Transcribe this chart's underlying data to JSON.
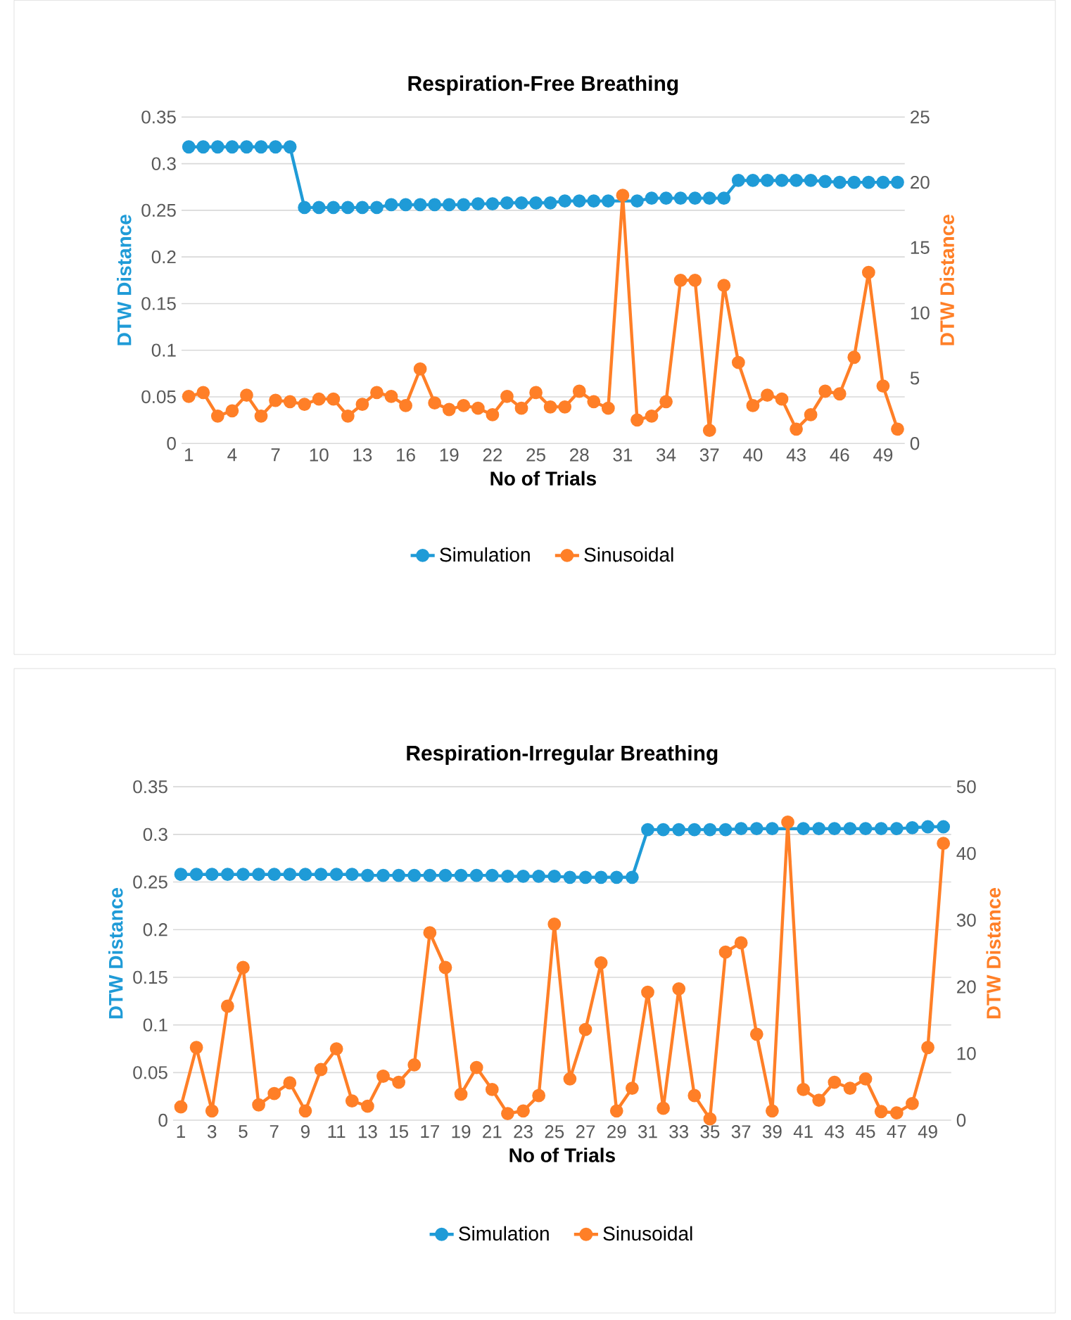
{
  "chart_data": [
    {
      "type": "line",
      "title": "Respiration-Free Breathing",
      "xlabel": "No of Trials",
      "ylabel": "DTW Distance",
      "y2label": "DTW Distance",
      "categories": [
        "1",
        null,
        null,
        "4",
        null,
        null,
        "7",
        null,
        null,
        "10",
        null,
        null,
        "13",
        null,
        null,
        "16",
        null,
        null,
        "19",
        null,
        null,
        "22",
        null,
        null,
        "25",
        null,
        null,
        "28",
        null,
        null,
        "31",
        null,
        null,
        "34",
        null,
        null,
        "37",
        null,
        null,
        "40",
        null,
        null,
        "43",
        null,
        null,
        "46",
        null,
        null,
        "49",
        null
      ],
      "series": [
        {
          "name": "Simulation",
          "color": "#1f9bd7",
          "values": [
            0.318,
            0.318,
            0.318,
            0.318,
            0.318,
            0.318,
            0.318,
            0.318,
            0.253,
            0.253,
            0.253,
            0.253,
            0.253,
            0.253,
            0.256,
            0.256,
            0.256,
            0.256,
            0.256,
            0.256,
            0.257,
            0.257,
            0.258,
            0.258,
            0.258,
            0.258,
            0.26,
            0.26,
            0.26,
            0.26,
            null,
            0.26,
            0.263,
            0.263,
            0.263,
            0.263,
            0.263,
            0.263,
            0.282,
            0.282,
            0.282,
            0.282,
            0.282,
            0.282,
            0.281,
            0.28,
            0.28,
            0.28,
            0.28,
            0.28
          ]
        },
        {
          "name": "Sinusoidal",
          "color": "#ff7f27",
          "axis": "y2",
          "values": [
            3.6,
            3.9,
            2.1,
            2.5,
            3.7,
            2.1,
            3.3,
            3.2,
            3.0,
            3.4,
            3.4,
            2.1,
            3.0,
            3.9,
            3.6,
            2.9,
            5.7,
            3.1,
            2.6,
            2.9,
            2.7,
            2.2,
            3.6,
            2.7,
            3.9,
            2.8,
            2.8,
            4.0,
            3.2,
            2.7,
            19.0,
            1.8,
            2.1,
            3.2,
            12.5,
            12.5,
            1.0,
            12.1,
            6.2,
            2.9,
            3.7,
            3.4,
            1.1,
            2.2,
            4.0,
            3.8,
            6.6,
            13.1,
            4.4,
            1.1
          ]
        }
      ],
      "ylim": [
        0,
        0.35
      ],
      "yticks": [
        0,
        0.05,
        0.1,
        0.15,
        0.2,
        0.25,
        0.3,
        0.35
      ],
      "y2lim": [
        0,
        25
      ],
      "y2ticks": [
        0,
        5,
        10,
        15,
        20,
        25
      ],
      "grid": "y",
      "legend": "bottom",
      "marker": "circle",
      "line_style": "solid"
    },
    {
      "type": "line",
      "title": "Respiration-Irregular Breathing",
      "xlabel": "No of Trials",
      "ylabel": "DTW Distance",
      "y2label": "DTW Distance",
      "categories": [
        "1",
        null,
        "3",
        null,
        "5",
        null,
        "7",
        null,
        "9",
        null,
        "11",
        null,
        "13",
        null,
        "15",
        null,
        "17",
        null,
        "19",
        null,
        "21",
        null,
        "23",
        null,
        "25",
        null,
        "27",
        null,
        "29",
        null,
        "31",
        null,
        "33",
        null,
        "35",
        null,
        "37",
        null,
        "39",
        null,
        "41",
        null,
        "43",
        null,
        "45",
        null,
        "47",
        null,
        "49",
        null
      ],
      "series": [
        {
          "name": "Simulation",
          "color": "#1f9bd7",
          "values": [
            0.258,
            0.258,
            0.258,
            0.258,
            0.258,
            0.258,
            0.258,
            0.258,
            0.258,
            0.258,
            0.258,
            0.258,
            0.257,
            0.257,
            0.257,
            0.257,
            0.257,
            0.257,
            0.257,
            0.257,
            0.257,
            0.256,
            0.256,
            0.256,
            0.256,
            0.255,
            0.255,
            0.255,
            0.255,
            0.255,
            0.305,
            0.305,
            0.305,
            0.305,
            0.305,
            0.305,
            0.306,
            0.306,
            0.306,
            null,
            0.306,
            0.306,
            0.306,
            0.306,
            0.306,
            0.306,
            0.306,
            0.307,
            0.308,
            0.308
          ]
        },
        {
          "name": "Sinusoidal",
          "color": "#ff7f27",
          "axis": "y2",
          "values": [
            2.0,
            10.9,
            1.4,
            17.1,
            22.9,
            2.3,
            4.0,
            5.6,
            1.4,
            7.6,
            10.7,
            2.9,
            2.1,
            6.6,
            5.7,
            8.3,
            28.1,
            22.9,
            3.9,
            7.9,
            4.6,
            1.0,
            1.4,
            3.7,
            29.4,
            6.2,
            13.6,
            23.6,
            1.4,
            4.8,
            19.2,
            1.8,
            19.7,
            3.7,
            0.2,
            25.2,
            26.6,
            12.9,
            1.4,
            44.7,
            4.6,
            3.0,
            5.7,
            4.8,
            6.2,
            1.3,
            1.1,
            2.5,
            10.9,
            41.5
          ]
        }
      ],
      "ylim": [
        0,
        0.35
      ],
      "yticks": [
        0,
        0.05,
        0.1,
        0.15,
        0.2,
        0.25,
        0.3,
        0.35
      ],
      "y2lim": [
        0,
        50
      ],
      "y2ticks": [
        0,
        10,
        20,
        30,
        40,
        50
      ],
      "grid": "y",
      "legend": "bottom",
      "marker": "circle",
      "line_style": "solid"
    }
  ]
}
